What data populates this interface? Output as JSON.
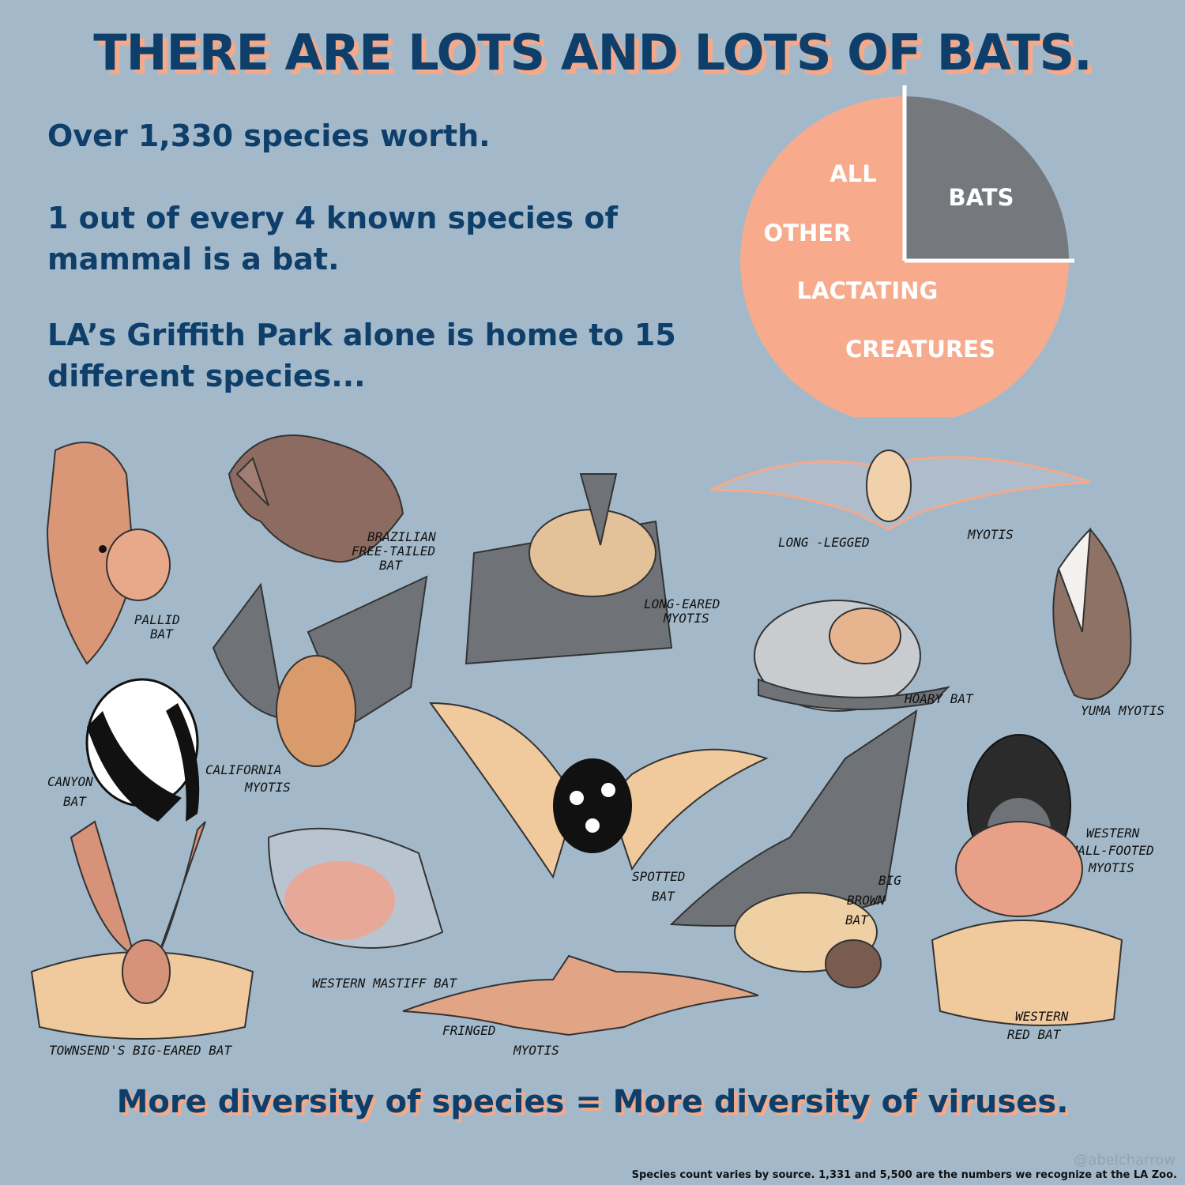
{
  "title": "THERE ARE LOTS AND LOTS OF BATS.",
  "facts": [
    "Over 1,330 species worth.",
    "1 out of every 4 known species of mammal is a bat.",
    "LA’s Griffith Park alone is home to 15 different species..."
  ],
  "pie": {
    "bats_label": "BATS",
    "other_label_lines": [
      "ALL",
      "OTHER",
      "LACTATING",
      "CREATURES"
    ],
    "bats_fraction": 0.25,
    "colors": {
      "bats": "#75797d",
      "other": "#f7ab8c"
    }
  },
  "bats": [
    {
      "id": "pallid",
      "label_lines": [
        "PALLID",
        "BAT"
      ],
      "icon": "pallid-bat"
    },
    {
      "id": "brazilian",
      "label_lines": [
        "BRAZILIAN",
        "FREE-TAILED",
        "BAT"
      ],
      "icon": "brazilian-free-tailed-bat"
    },
    {
      "id": "long-eared",
      "label_lines": [
        "LONG-EARED",
        "MYOTIS"
      ],
      "icon": "long-eared-myotis"
    },
    {
      "id": "long-legged",
      "label_lines": [
        "LONG -LEGGED",
        "MYOTIS"
      ],
      "icon": "long-legged-myotis"
    },
    {
      "id": "hoary",
      "label_lines": [
        "HOARY BAT"
      ],
      "icon": "hoary-bat"
    },
    {
      "id": "yuma",
      "label_lines": [
        "YUMA MYOTIS"
      ],
      "icon": "yuma-myotis"
    },
    {
      "id": "canyon",
      "label_lines": [
        "CANYON",
        "BAT"
      ],
      "icon": "canyon-bat"
    },
    {
      "id": "california",
      "label_lines": [
        "CALIFORNIA",
        "MYOTIS"
      ],
      "icon": "california-myotis"
    },
    {
      "id": "spotted",
      "label_lines": [
        "SPOTTED",
        "BAT"
      ],
      "icon": "spotted-bat"
    },
    {
      "id": "western-small-footed",
      "label_lines": [
        "WESTERN",
        "SMALL-FOOTED",
        "MYOTIS"
      ],
      "icon": "western-small-footed-myotis"
    },
    {
      "id": "big-brown",
      "label_lines": [
        "BIG",
        "BROWN",
        "BAT"
      ],
      "icon": "big-brown-bat"
    },
    {
      "id": "townsends",
      "label_lines": [
        "TOWNSEND'S BIG-EARED BAT"
      ],
      "icon": "townsends-big-eared-bat"
    },
    {
      "id": "western-mastiff",
      "label_lines": [
        "WESTERN MASTIFF BAT"
      ],
      "icon": "western-mastiff-bat"
    },
    {
      "id": "fringed",
      "label_lines": [
        "FRINGED",
        "MYOTIS"
      ],
      "icon": "fringed-myotis"
    },
    {
      "id": "western-red",
      "label_lines": [
        "WESTERN",
        "RED BAT"
      ],
      "icon": "western-red-bat"
    }
  ],
  "bottom_line": "More diversity of species = More diversity of viruses.",
  "handle": "@abelcharrow",
  "footnote": "Species count varies by source. 1,331 and 5,500 are the numbers we recognize at the LA Zoo."
}
